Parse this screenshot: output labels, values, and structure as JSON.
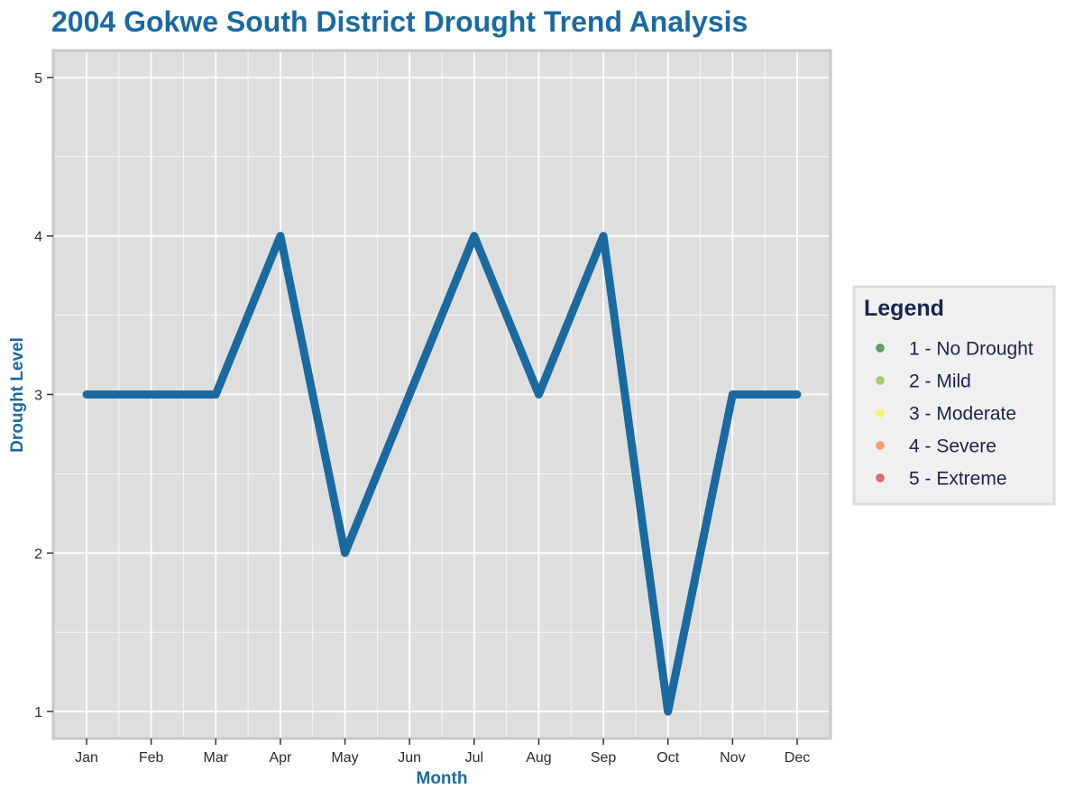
{
  "chart_data": {
    "type": "line",
    "title": "2004 Gokwe South District Drought Trend Analysis",
    "xlabel": "Month",
    "ylabel": "Drought Level",
    "categories": [
      "Jan",
      "Feb",
      "Mar",
      "Apr",
      "May",
      "Jun",
      "Jul",
      "Aug",
      "Sep",
      "Oct",
      "Nov",
      "Dec"
    ],
    "series": [
      {
        "values": [
          3,
          3,
          3,
          4,
          2,
          3,
          4,
          3,
          4,
          1,
          3,
          3
        ],
        "color": "#1a6aa0"
      }
    ],
    "ylim": [
      0.83,
      5.17
    ],
    "yticks": [
      1,
      2,
      3,
      4,
      5
    ],
    "grid": true,
    "legend": {
      "title": "Legend",
      "placement": "right",
      "items": [
        {
          "label": "1 - No Drought",
          "color": "#4d8f4d"
        },
        {
          "label": "2 - Mild",
          "color": "#9cc55a"
        },
        {
          "label": "3 - Moderate",
          "color": "#f2f25c"
        },
        {
          "label": "4 - Severe",
          "color": "#ef9560"
        },
        {
          "label": "5 - Extreme",
          "color": "#d85a5a"
        }
      ]
    },
    "colors": {
      "title": "#1a6aa0",
      "axis_title": "#1a6aa0",
      "panel_background": "#dedede",
      "panel_border": "#c8c8c8",
      "grid": "#ffffff",
      "legend_background": "#f0f0f0",
      "legend_border": "#dcdcdc"
    }
  }
}
